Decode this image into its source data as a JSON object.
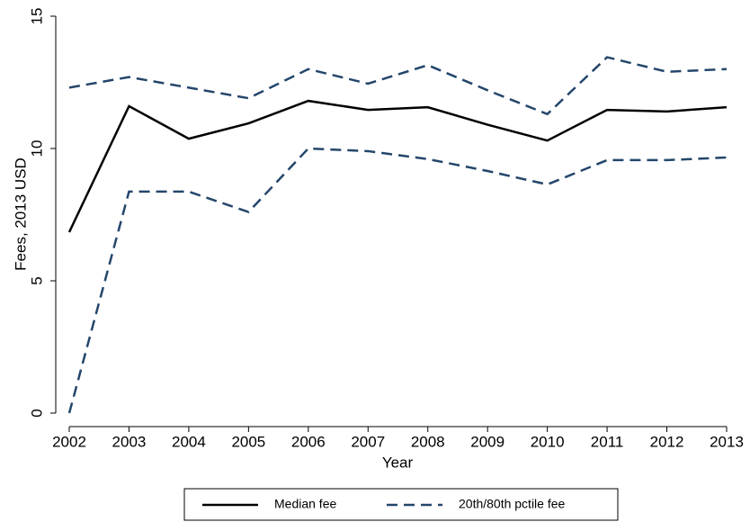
{
  "chart_data": {
    "type": "line",
    "x_label": "Year",
    "y_label": "Fees, 2013 USD",
    "x": [
      2002,
      2003,
      2004,
      2005,
      2006,
      2007,
      2008,
      2009,
      2010,
      2011,
      2012,
      2013
    ],
    "xlim": [
      2002,
      2013
    ],
    "xticks": [
      2002,
      2003,
      2004,
      2005,
      2006,
      2007,
      2008,
      2009,
      2010,
      2011,
      2012,
      2013
    ],
    "ylim": [
      0,
      15
    ],
    "yticks": [
      0,
      5,
      10,
      15
    ],
    "series": [
      {
        "name": "Median fee",
        "color": "#000000",
        "style": "solid",
        "values": [
          6.84,
          11.6,
          10.37,
          10.95,
          11.8,
          11.46,
          11.56,
          10.9,
          10.3,
          11.46,
          11.4,
          11.56
        ]
      },
      {
        "name": "20th/80th pctile fee",
        "color": "#24466b",
        "style": "dashed",
        "upper": [
          12.3,
          12.7,
          12.3,
          11.9,
          13.0,
          12.45,
          13.15,
          12.2,
          11.3,
          13.45,
          12.9,
          13.0
        ],
        "lower": [
          0,
          8.37,
          8.37,
          7.6,
          10.0,
          9.9,
          9.6,
          9.15,
          8.64,
          9.56,
          9.56,
          9.66
        ]
      }
    ]
  }
}
